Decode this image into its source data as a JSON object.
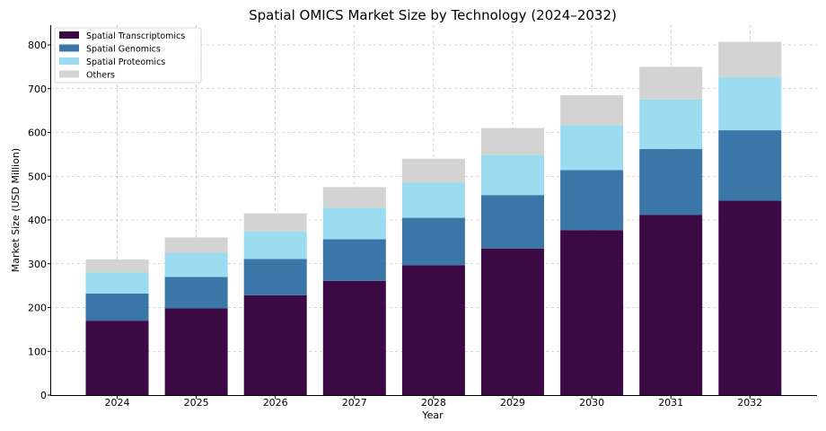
{
  "chart_data": {
    "type": "bar",
    "stacked": true,
    "title": "Spatial OMICS Market Size by Technology (2024–2032)",
    "xlabel": "Year",
    "ylabel": "Market Size (USD Million)",
    "ylim": [
      0,
      850
    ],
    "yticks": [
      0,
      100,
      200,
      300,
      400,
      500,
      600,
      700,
      800
    ],
    "grid": true,
    "legend_position": "top-left",
    "categories": [
      "2024",
      "2025",
      "2026",
      "2027",
      "2028",
      "2029",
      "2030",
      "2031",
      "2032"
    ],
    "series": [
      {
        "name": "Spatial Transcriptomics",
        "color": "#3b0a45",
        "values": [
          170,
          198,
          228,
          261,
          297,
          335,
          377,
          412,
          444
        ]
      },
      {
        "name": "Spatial Genomics",
        "color": "#3a76a8",
        "values": [
          62,
          72,
          83,
          95,
          108,
          122,
          137,
          150,
          161
        ]
      },
      {
        "name": "Spatial Proteomics",
        "color": "#9cdcf0",
        "values": [
          48,
          55,
          63,
          72,
          81,
          92,
          103,
          113,
          121
        ]
      },
      {
        "name": "Others",
        "color": "#d3d3d3",
        "values": [
          30,
          35,
          41,
          47,
          54,
          61,
          68,
          75,
          81
        ]
      }
    ]
  }
}
